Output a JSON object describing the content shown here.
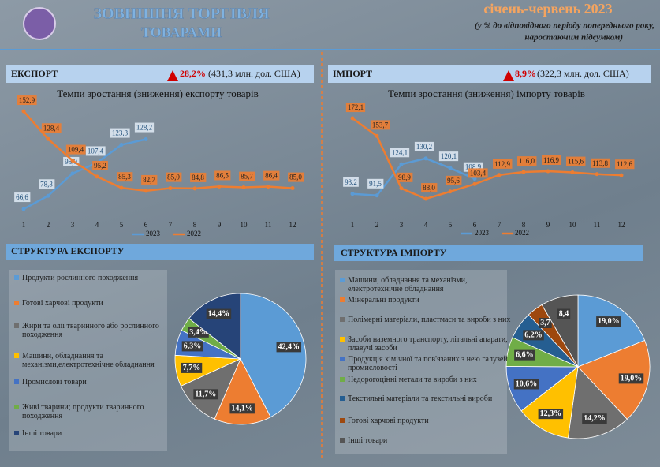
{
  "header": {
    "title": [
      "ЗОВНІШНЯ ТОРГІВЛЯ",
      "ТОВАРАМИ"
    ],
    "period": "січень-червень 2023",
    "note": [
      "(у % до відповідного періоду попереднього року,",
      "наростаючим підсумком)"
    ]
  },
  "export_banner": {
    "label": "ЕКСПОРТ",
    "growth": "28,2%",
    "amount": "(431,3 млн. дол. США)"
  },
  "import_banner": {
    "label": "ІМПОРТ",
    "growth": "8,9%",
    "amount": "(322,3 млн. дол. США)"
  },
  "structure_titles": [
    "СТРУКТУРА ЕКСПОРТУ",
    "СТРУКТУРА  ІМПОРТУ"
  ],
  "chart_data": [
    {
      "type": "line",
      "title": "Темпи зростання (зниження) експорту товарів",
      "categories": [
        "1",
        "2",
        "3",
        "4",
        "5",
        "6",
        "7",
        "8",
        "9",
        "10",
        "11",
        "12"
      ],
      "series": [
        {
          "name": "2023",
          "color": "#5b9bd5",
          "values": [
            66.6,
            78.3,
            98.0,
            107.4,
            123.3,
            128.2,
            null,
            null,
            null,
            null,
            null,
            null
          ],
          "value_labels": [
            "66,6",
            "78,3",
            "98,0",
            "107,4",
            "123,3",
            "128,2",
            null,
            null,
            null,
            null,
            null,
            null
          ]
        },
        {
          "name": "2022",
          "color": "#ed7d31",
          "values": [
            152.9,
            128.4,
            109.4,
            95.2,
            85.3,
            82.7,
            85.0,
            84.8,
            86.5,
            85.7,
            86.4,
            85.0
          ],
          "value_labels": [
            "152,9",
            "128,4",
            "109,4",
            "95,2",
            "85,3",
            "82,7",
            "85,0",
            "84,8",
            "86,5",
            "85,7",
            "86,4",
            "85,0"
          ]
        }
      ]
    },
    {
      "type": "line",
      "title": "Темпи зростання (зниження) імпорту товарів",
      "categories": [
        "1",
        "2",
        "3",
        "4",
        "5",
        "6",
        "7",
        "8",
        "9",
        "10",
        "11",
        "12"
      ],
      "series": [
        {
          "name": "2023",
          "color": "#5b9bd5",
          "values": [
            93.2,
            91.5,
            124.1,
            130.2,
            120.1,
            108.9,
            null,
            null,
            null,
            null,
            null,
            null
          ],
          "value_labels": [
            "93,2",
            "91,5",
            "124,1",
            "130,2",
            "120,1",
            "108,9",
            null,
            null,
            null,
            null,
            null,
            null
          ]
        },
        {
          "name": "2022",
          "color": "#ed7d31",
          "values": [
            172.1,
            153.7,
            98.9,
            88.0,
            95.6,
            103.4,
            112.9,
            116.0,
            116.9,
            115.6,
            113.8,
            112.6
          ],
          "value_labels": [
            "172,1",
            "153,7",
            "98,9",
            "88,0",
            "95,6",
            "103,4",
            "112,9",
            "116,0",
            "116,9",
            "115,6",
            "113,8",
            "112,6"
          ]
        }
      ]
    },
    {
      "type": "pie",
      "categories": [
        "Продукти рослинного походження",
        "Готові харчові продукти",
        "Жири та олії тваринного або рослинного походження",
        "Машини, обладнання та механізми,електротехнічне обладнання",
        "Промислові товари",
        "Живі тварини; продукти тваринного походження",
        "Інші товари"
      ],
      "values": [
        42.4,
        14.1,
        11.7,
        7.7,
        6.3,
        3.4,
        14.4
      ],
      "value_labels": [
        "42,4%",
        "14,1%",
        "11,7%",
        "7,7%",
        "6,3%",
        "3,4%",
        "14,4%"
      ],
      "colors": [
        "#5b9bd5",
        "#ed7d31",
        "#6f6f6f",
        "#ffc000",
        "#4472c4",
        "#70ad47",
        "#264478"
      ]
    },
    {
      "type": "pie",
      "categories": [
        "Машини, обладнання та механізми, електротехнічне обладнання",
        "Мінеральні продукти",
        "Полімерні матеріали, пластмаси та вироби з них",
        "Засоби наземного транспорту, літальні апарати, плавучі засоби",
        "Продукція хімічної та пов'язаних з нею галузей промисловості",
        "Недорогоцінні метали та вироби з них",
        "Текстильні матеріали та текстильні вироби",
        "Готові харчові продукти",
        "Інші товари"
      ],
      "values": [
        19.0,
        19.0,
        14.2,
        12.3,
        10.6,
        6.6,
        6.2,
        3.7,
        8.4
      ],
      "value_labels": [
        "19,0%",
        "19,0%",
        "14,2%",
        "12,3%",
        "10,6%",
        "6,6%",
        "6,2%",
        "3,7",
        "8,4"
      ],
      "colors": [
        "#5b9bd5",
        "#ed7d31",
        "#6f6f6f",
        "#ffc000",
        "#4472c4",
        "#70ad47",
        "#255e91",
        "#9e480e",
        "#555555"
      ]
    }
  ]
}
